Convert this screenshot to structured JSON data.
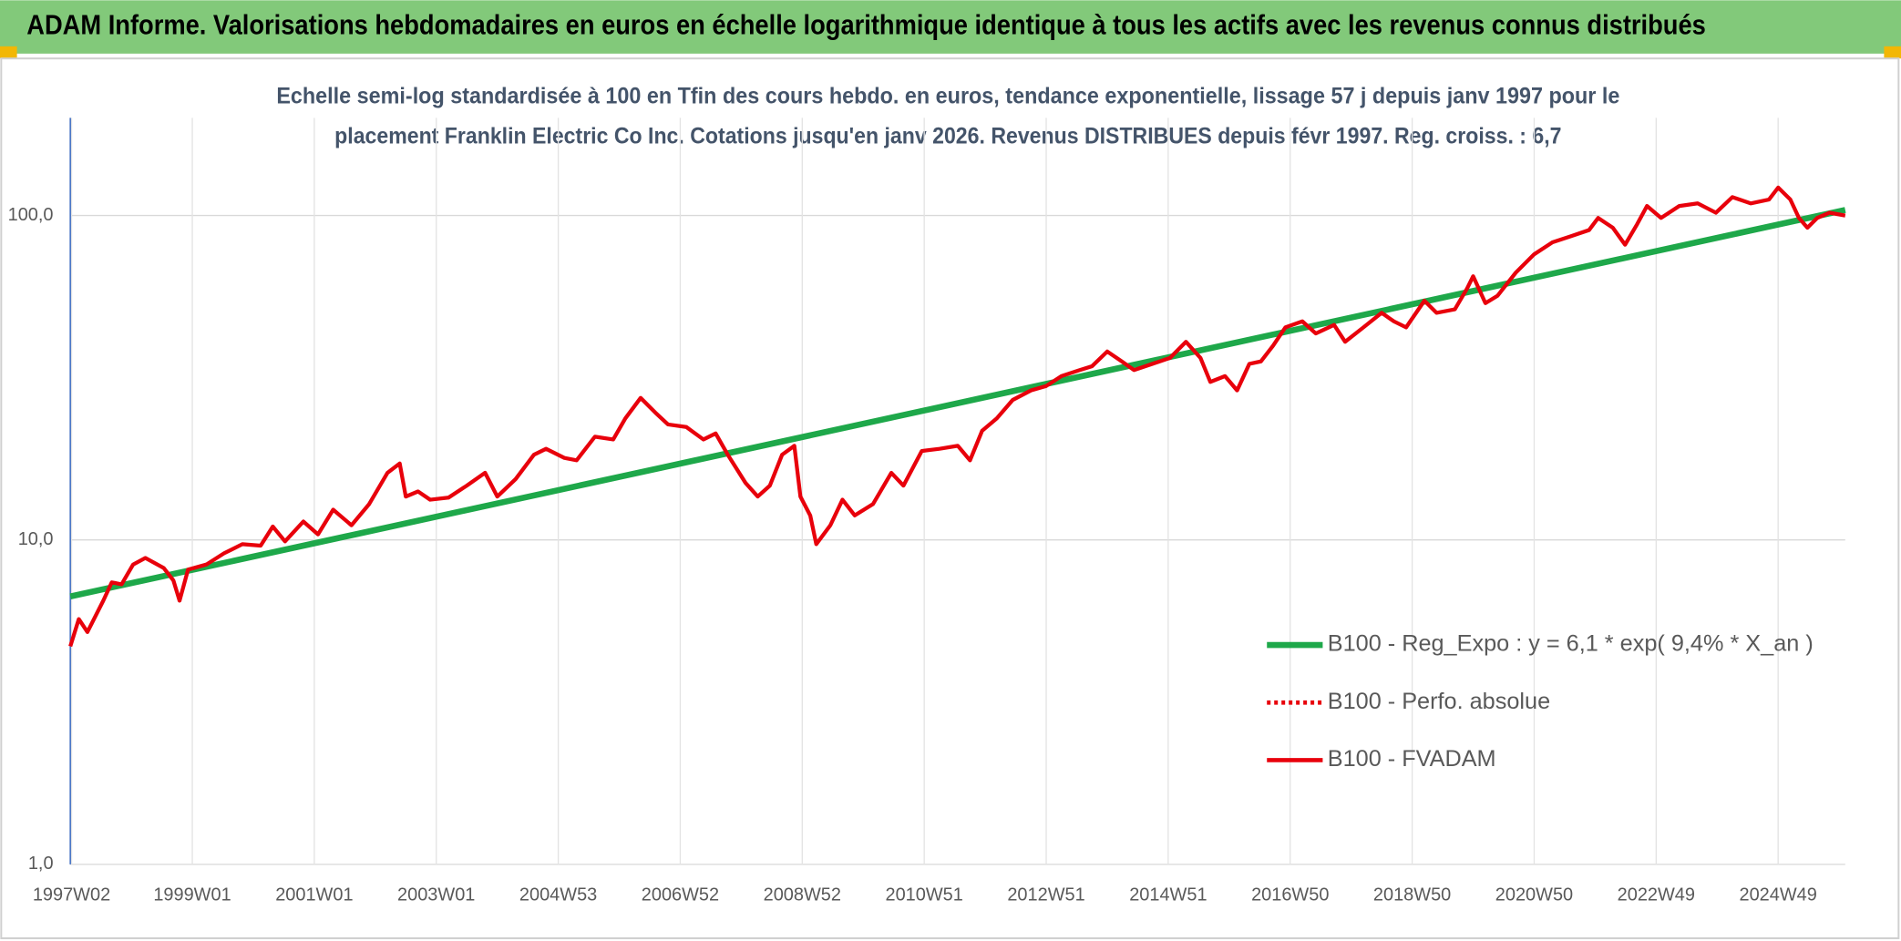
{
  "chart_data": {
    "type": "line",
    "title": "ADAM Informe. Valorisations hebdomadaires en euros en échelle logarithmique identique à tous les actifs avec les revenus connus distribués",
    "subtitle": [
      "Echelle semi-log standardisée à 100 en Tfin des cours hebdo. en euros, tendance exponentielle, lissage 57 j depuis janv 1997 pour le",
      "placement Franklin Electric Co Inc. Cotations jusqu'en janv 2026. Revenus DISTRIBUES depuis févr 1997. Reg. croiss. : 6,7"
    ],
    "log_y": true,
    "grid": true,
    "legend": "right",
    "xlim": [
      1997.0,
      2026.1
    ],
    "xticks": [
      {
        "value": 1997.02,
        "label": "1997W02"
      },
      {
        "value": 1999.0,
        "label": "1999W01"
      },
      {
        "value": 2001.0,
        "label": "2001W01"
      },
      {
        "value": 2003.0,
        "label": "2003W01"
      },
      {
        "value": 2005.0,
        "label": "2004W53"
      },
      {
        "value": 2007.0,
        "label": "2006W52"
      },
      {
        "value": 2009.0,
        "label": "2008W52"
      },
      {
        "value": 2011.0,
        "label": "2010W51"
      },
      {
        "value": 2013.0,
        "label": "2012W51"
      },
      {
        "value": 2015.0,
        "label": "2014W51"
      },
      {
        "value": 2017.0,
        "label": "2016W50"
      },
      {
        "value": 2019.0,
        "label": "2018W50"
      },
      {
        "value": 2021.0,
        "label": "2020W50"
      },
      {
        "value": 2023.0,
        "label": "2022W49"
      },
      {
        "value": 2025.0,
        "label": "2024W49"
      }
    ],
    "ylim": [
      1,
      200
    ],
    "yticks": [
      {
        "value": 1,
        "label": "1,0"
      },
      {
        "value": 10,
        "label": "10,0"
      },
      {
        "value": 100,
        "label": "100,0"
      }
    ],
    "series": [
      {
        "name": "B100 - Reg_Expo : y = 6,1 * exp( 9,4% *  X_an )",
        "color": "#1ea84a",
        "dash": "solid",
        "x": [
          1997.0,
          2026.1
        ],
        "values": [
          6.7,
          104
        ]
      },
      {
        "name": "B100 - Perfo. absolue",
        "color": "#e8000b",
        "dash": "dotted",
        "x": [],
        "values": []
      },
      {
        "name": "B100 - FVADAM",
        "color": "#e8000b",
        "dash": "solid",
        "x": [
          1997.0,
          1997.14,
          1997.28,
          1997.54,
          1997.68,
          1997.84,
          1998.03,
          1998.23,
          1998.53,
          1998.69,
          1998.79,
          1998.93,
          1999.23,
          1999.52,
          1999.82,
          2000.12,
          2000.32,
          2000.52,
          2000.82,
          2001.06,
          2001.31,
          2001.61,
          2001.9,
          2002.2,
          2002.4,
          2002.5,
          2002.7,
          2002.9,
          2003.2,
          2003.5,
          2003.8,
          2004.0,
          2004.3,
          2004.6,
          2004.8,
          2005.1,
          2005.3,
          2005.6,
          2005.9,
          2006.1,
          2006.35,
          2006.59,
          2006.8,
          2007.1,
          2007.38,
          2007.58,
          2007.78,
          2008.07,
          2008.27,
          2008.47,
          2008.67,
          2008.87,
          2008.97,
          2009.13,
          2009.23,
          2009.46,
          2009.66,
          2009.86,
          2010.16,
          2010.46,
          2010.66,
          2010.96,
          2011.25,
          2011.55,
          2011.75,
          2011.95,
          2012.19,
          2012.45,
          2012.75,
          2013.0,
          2013.25,
          2013.55,
          2013.75,
          2014.0,
          2014.24,
          2014.44,
          2014.74,
          2015.03,
          2015.29,
          2015.53,
          2015.69,
          2015.93,
          2016.13,
          2016.33,
          2016.52,
          2016.72,
          2016.92,
          2017.2,
          2017.42,
          2017.72,
          2017.9,
          2018.2,
          2018.5,
          2018.7,
          2018.9,
          2019.2,
          2019.4,
          2019.7,
          2019.9,
          2020.0,
          2020.2,
          2020.4,
          2020.7,
          2021.0,
          2021.3,
          2021.6,
          2021.9,
          2022.05,
          2022.29,
          2022.49,
          2022.69,
          2022.85,
          2023.08,
          2023.38,
          2023.68,
          2023.98,
          2024.25,
          2024.55,
          2024.85,
          2025.0,
          2025.2,
          2025.34,
          2025.48,
          2025.64,
          2025.84,
          2026.1
        ],
        "values": [
          4.7,
          5.7,
          5.2,
          6.5,
          7.4,
          7.3,
          8.4,
          8.8,
          8.2,
          7.5,
          6.5,
          8.1,
          8.4,
          9.1,
          9.7,
          9.6,
          11.0,
          9.9,
          11.4,
          10.4,
          12.4,
          11.1,
          12.9,
          16.1,
          17.2,
          13.6,
          14.1,
          13.3,
          13.5,
          14.7,
          16.1,
          13.6,
          15.4,
          18.3,
          19.1,
          17.9,
          17.6,
          20.8,
          20.4,
          23.7,
          27.4,
          24.7,
          22.7,
          22.3,
          20.4,
          21.3,
          18.3,
          15.0,
          13.6,
          14.7,
          18.3,
          19.5,
          13.6,
          11.9,
          9.7,
          11.1,
          13.3,
          11.9,
          12.9,
          16.1,
          14.7,
          18.8,
          19.1,
          19.5,
          17.6,
          21.7,
          23.7,
          27.0,
          28.9,
          29.8,
          32.0,
          33.4,
          34.3,
          38.1,
          35.5,
          33.4,
          34.9,
          36.4,
          40.8,
          36.4,
          30.7,
          32.0,
          28.9,
          34.9,
          35.5,
          39.7,
          45.2,
          47.2,
          43.3,
          46.0,
          40.8,
          45.2,
          50.1,
          47.2,
          45.2,
          54.6,
          50.1,
          51.4,
          59.6,
          65.0,
          53.7,
          56.6,
          66.7,
          75.9,
          82.7,
          86.3,
          90.2,
          98.3,
          91.7,
          81.3,
          94.1,
          107,
          98.3,
          107,
          109,
          102,
          114,
          109,
          112,
          122,
          112,
          98.3,
          91.7,
          98.3,
          102,
          100
        ]
      }
    ]
  }
}
